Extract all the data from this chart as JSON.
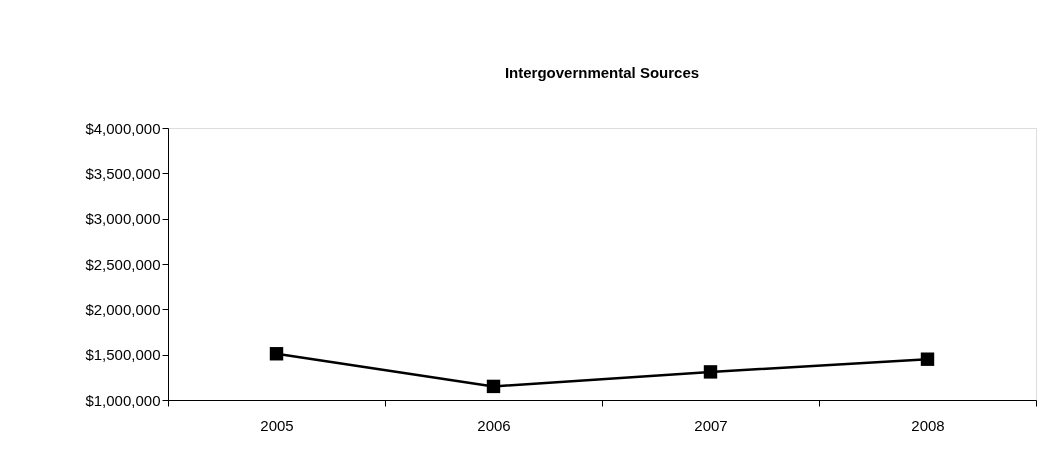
{
  "chart_data": {
    "type": "line",
    "title": "Intergovernmental Sources",
    "categories": [
      "2005",
      "2006",
      "2007",
      "2008"
    ],
    "series": [
      {
        "color": "#000000",
        "values": [
          1510000,
          1150000,
          1310000,
          1450000
        ]
      }
    ],
    "ylim": [
      1000000,
      4000000
    ],
    "yticks": [
      {
        "value": 1000000,
        "label": "$1,000,000"
      },
      {
        "value": 1500000,
        "label": "$1,500,000"
      },
      {
        "value": 2000000,
        "label": "$2,000,000"
      },
      {
        "value": 2500000,
        "label": "$2,500,000"
      },
      {
        "value": 3000000,
        "label": "$3,000,000"
      },
      {
        "value": 3500000,
        "label": "$3,500,000"
      },
      {
        "value": 4000000,
        "label": "$4,000,000"
      }
    ],
    "marker": "square",
    "line_style": "solid",
    "grid": false,
    "legend": false
  }
}
